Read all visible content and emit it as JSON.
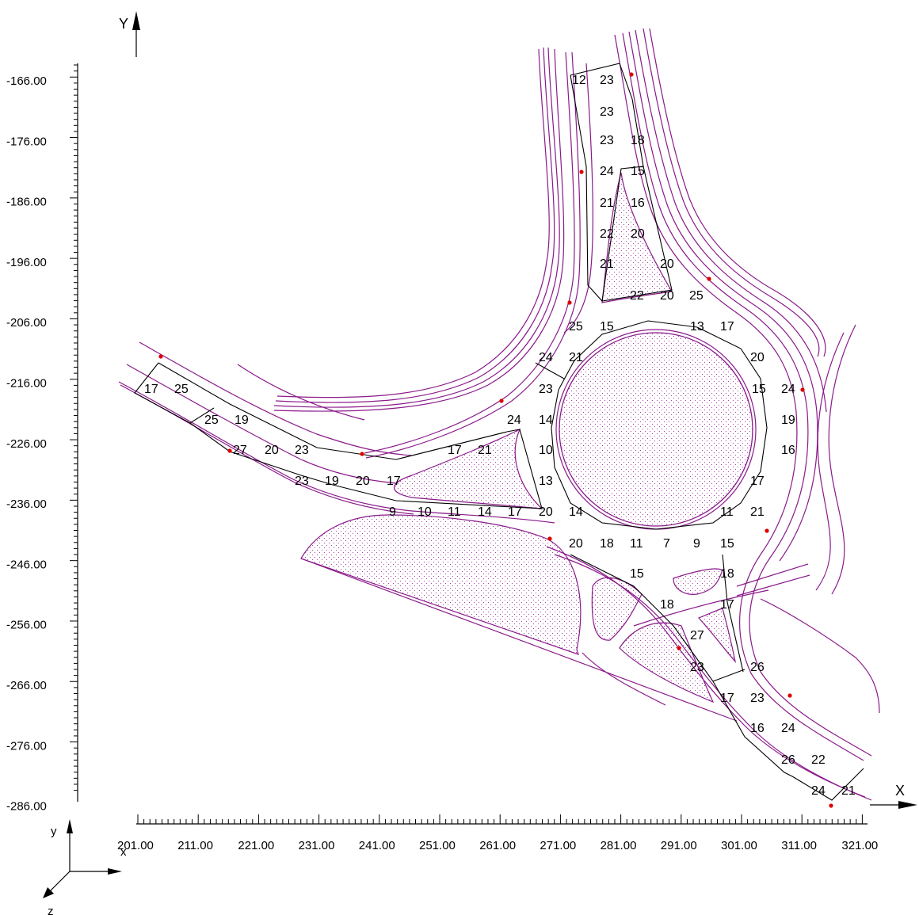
{
  "axes": {
    "y_title": "Y",
    "x_title": "X",
    "y_ticks": [
      "-166.00",
      "-176.00",
      "-186.00",
      "-196.00",
      "-206.00",
      "-216.00",
      "-226.00",
      "-236.00",
      "-246.00",
      "-256.00",
      "-266.00",
      "-276.00",
      "-286.00"
    ],
    "x_ticks": [
      "201.00",
      "211.00",
      "221.00",
      "231.00",
      "241.00",
      "251.00",
      "261.00",
      "271.00",
      "281.00",
      "291.00",
      "301.00",
      "311.00",
      "321.00"
    ],
    "triad": {
      "y": "y",
      "x": "x",
      "z": "z"
    }
  },
  "colors": {
    "road": "#8a1a8a",
    "edge": "#000000",
    "label_default": "#000000",
    "label_green": "#1a9a1a",
    "label_red": "#ff0000",
    "label_blue": "#1a1aff",
    "marker": "#dd0000"
  },
  "labels": [
    {
      "t": "12",
      "c": "k"
    },
    {
      "t": "23",
      "c": "k"
    },
    {
      "t": "23",
      "c": "k"
    },
    {
      "t": "23",
      "c": "k"
    },
    {
      "t": "18",
      "c": "k"
    },
    {
      "t": "24",
      "c": "k"
    },
    {
      "t": "15",
      "c": "k"
    },
    {
      "t": "21",
      "c": "k"
    },
    {
      "t": "16",
      "c": "k"
    },
    {
      "t": "22",
      "c": "k"
    },
    {
      "t": "20",
      "c": "k"
    },
    {
      "t": "21",
      "c": "k"
    },
    {
      "t": "20",
      "c": "k"
    },
    {
      "t": "22",
      "c": "k"
    },
    {
      "t": "20",
      "c": "k"
    },
    {
      "t": "25",
      "c": "k"
    },
    {
      "t": "25",
      "c": "k"
    },
    {
      "t": "15",
      "c": "k"
    },
    {
      "t": "13",
      "c": "k"
    },
    {
      "t": "17",
      "c": "k"
    },
    {
      "t": "24",
      "c": "k"
    },
    {
      "t": "21",
      "c": "k"
    },
    {
      "t": "20",
      "c": "k"
    },
    {
      "t": "17",
      "c": "k"
    },
    {
      "t": "25",
      "c": "k"
    },
    {
      "t": "23",
      "c": "k"
    },
    {
      "t": "15",
      "c": "k"
    },
    {
      "t": "24",
      "c": "k"
    },
    {
      "t": "25",
      "c": "k"
    },
    {
      "t": "19",
      "c": "g"
    },
    {
      "t": "24",
      "c": "k"
    },
    {
      "t": "14",
      "c": "k"
    },
    {
      "t": "19",
      "c": "g"
    },
    {
      "t": "27",
      "c": "r"
    },
    {
      "t": "20",
      "c": "k"
    },
    {
      "t": "23",
      "c": "k"
    },
    {
      "t": "17",
      "c": "k"
    },
    {
      "t": "21",
      "c": "k"
    },
    {
      "t": "10",
      "c": "k"
    },
    {
      "t": "16",
      "c": "k"
    },
    {
      "t": "23",
      "c": "k"
    },
    {
      "t": "19",
      "c": "g"
    },
    {
      "t": "20",
      "c": "k"
    },
    {
      "t": "17",
      "c": "k"
    },
    {
      "t": "13",
      "c": "k"
    },
    {
      "t": "17",
      "c": "k"
    },
    {
      "t": "9",
      "c": "k"
    },
    {
      "t": "10",
      "c": "k"
    },
    {
      "t": "11",
      "c": "k"
    },
    {
      "t": "14",
      "c": "k"
    },
    {
      "t": "17",
      "c": "k"
    },
    {
      "t": "20",
      "c": "k"
    },
    {
      "t": "14",
      "c": "k"
    },
    {
      "t": "11",
      "c": "k"
    },
    {
      "t": "21",
      "c": "k"
    },
    {
      "t": "20",
      "c": "k"
    },
    {
      "t": "18",
      "c": "k"
    },
    {
      "t": "11",
      "c": "k"
    },
    {
      "t": "7",
      "c": "b"
    },
    {
      "t": "9",
      "c": "k"
    },
    {
      "t": "15",
      "c": "k"
    },
    {
      "t": "15",
      "c": "k"
    },
    {
      "t": "18",
      "c": "k"
    },
    {
      "t": "18",
      "c": "k"
    },
    {
      "t": "17",
      "c": "k"
    },
    {
      "t": "27",
      "c": "r"
    },
    {
      "t": "23",
      "c": "k"
    },
    {
      "t": "26",
      "c": "k"
    },
    {
      "t": "17",
      "c": "k"
    },
    {
      "t": "23",
      "c": "k"
    },
    {
      "t": "16",
      "c": "k"
    },
    {
      "t": "24",
      "c": "k"
    },
    {
      "t": "26",
      "c": "k"
    },
    {
      "t": "22",
      "c": "k"
    },
    {
      "t": "24",
      "c": "k"
    },
    {
      "t": "21",
      "c": "k"
    }
  ]
}
